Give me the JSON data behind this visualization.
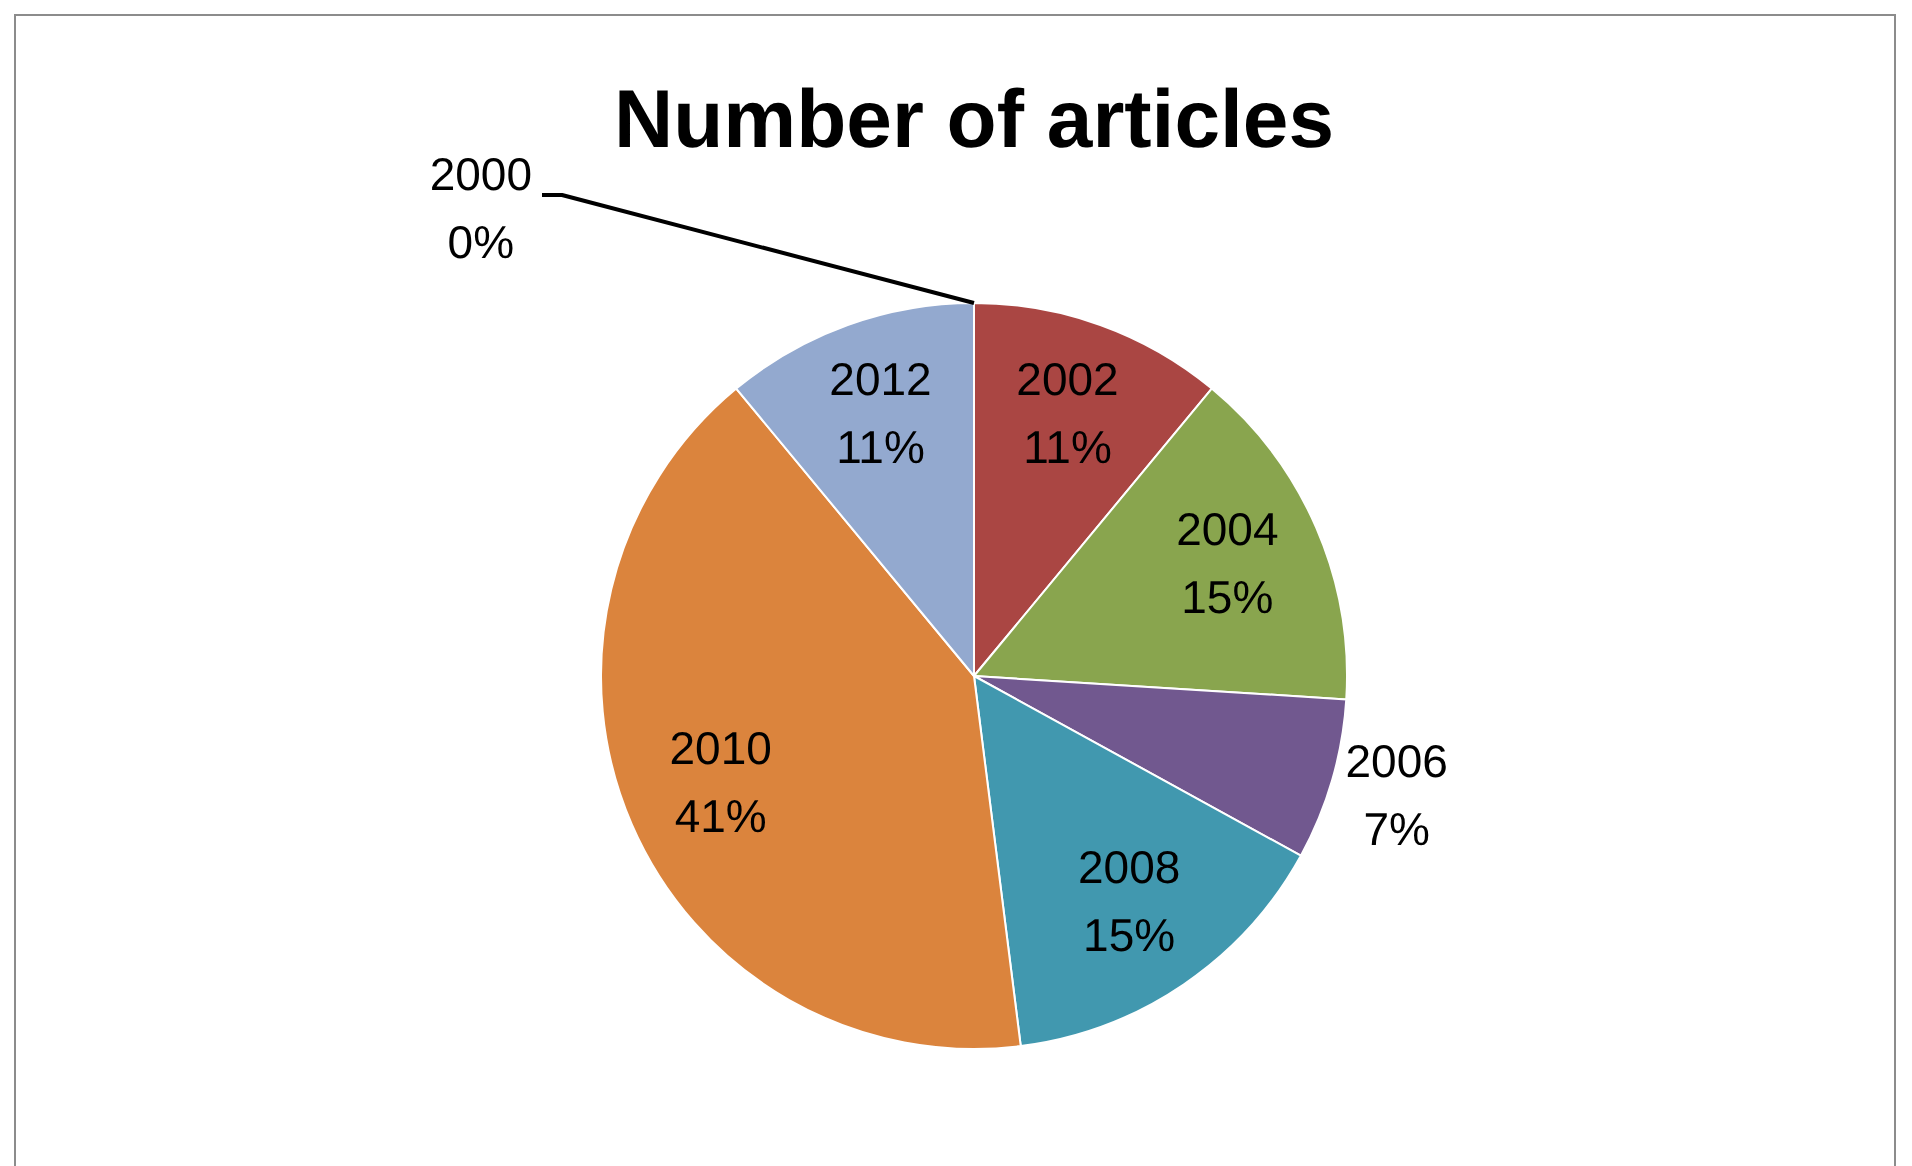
{
  "chart_data": {
    "type": "pie",
    "title": "Number of articles",
    "categories": [
      "2000",
      "2002",
      "2004",
      "2006",
      "2008",
      "2010",
      "2012"
    ],
    "values": [
      0,
      11,
      15,
      7,
      15,
      41,
      11
    ],
    "colors": [
      "#4f81bd",
      "#aa4643",
      "#89a54e",
      "#71588f",
      "#4198af",
      "#db843d",
      "#93a9cf"
    ],
    "value_labels": [
      "0%",
      "11%",
      "15%",
      "7%",
      "15%",
      "41%",
      "11%"
    ]
  }
}
